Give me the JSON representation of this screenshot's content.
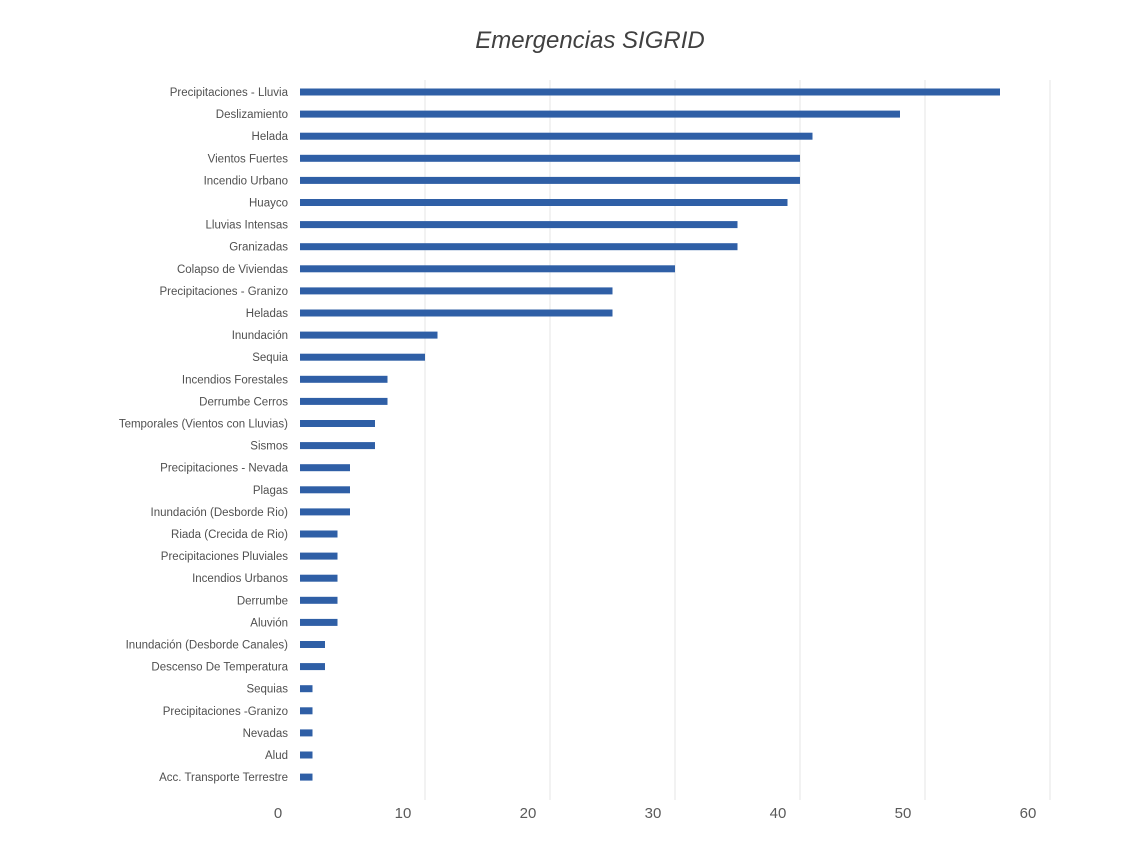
{
  "chart_data": {
    "type": "bar",
    "orientation": "horizontal",
    "title": "Emergencias SIGRID",
    "xlabel": "",
    "ylabel": "",
    "xlim": [
      0,
      60
    ],
    "x_ticks": [
      0,
      10,
      20,
      30,
      40,
      50,
      60
    ],
    "grid": true,
    "legend": "none",
    "bar_color": "#2f5fa6",
    "categories": [
      "Precipitaciones - Lluvia",
      "Deslizamiento",
      "Helada",
      "Vientos Fuertes",
      "Incendio Urbano",
      "Huayco",
      "Lluvias Intensas",
      "Granizadas",
      "Colapso de Viviendas",
      "Precipitaciones - Granizo",
      "Heladas",
      "Inundación",
      "Sequia",
      "Incendios Forestales",
      "Derrumbe Cerros",
      "Temporales (Vientos con Lluvias)",
      "Sismos",
      "Precipitaciones - Nevada",
      "Plagas",
      "Inundación (Desborde Rio)",
      "Riada (Crecida de Rio)",
      "Precipitaciones Pluviales",
      "Incendios Urbanos",
      "Derrumbe",
      "Aluvión",
      "Inundación (Desborde Canales)",
      "Descenso De Temperatura",
      "Sequias",
      "Precipitaciones -Granizo",
      "Nevadas",
      "Alud",
      "Acc. Transporte Terrestre"
    ],
    "values": [
      56,
      48,
      41,
      40,
      40,
      39,
      35,
      35,
      30,
      25,
      25,
      11,
      10,
      7,
      7,
      6,
      6,
      4,
      4,
      4,
      3,
      3,
      3,
      3,
      3,
      2,
      2,
      1,
      1,
      1,
      1,
      1
    ]
  }
}
